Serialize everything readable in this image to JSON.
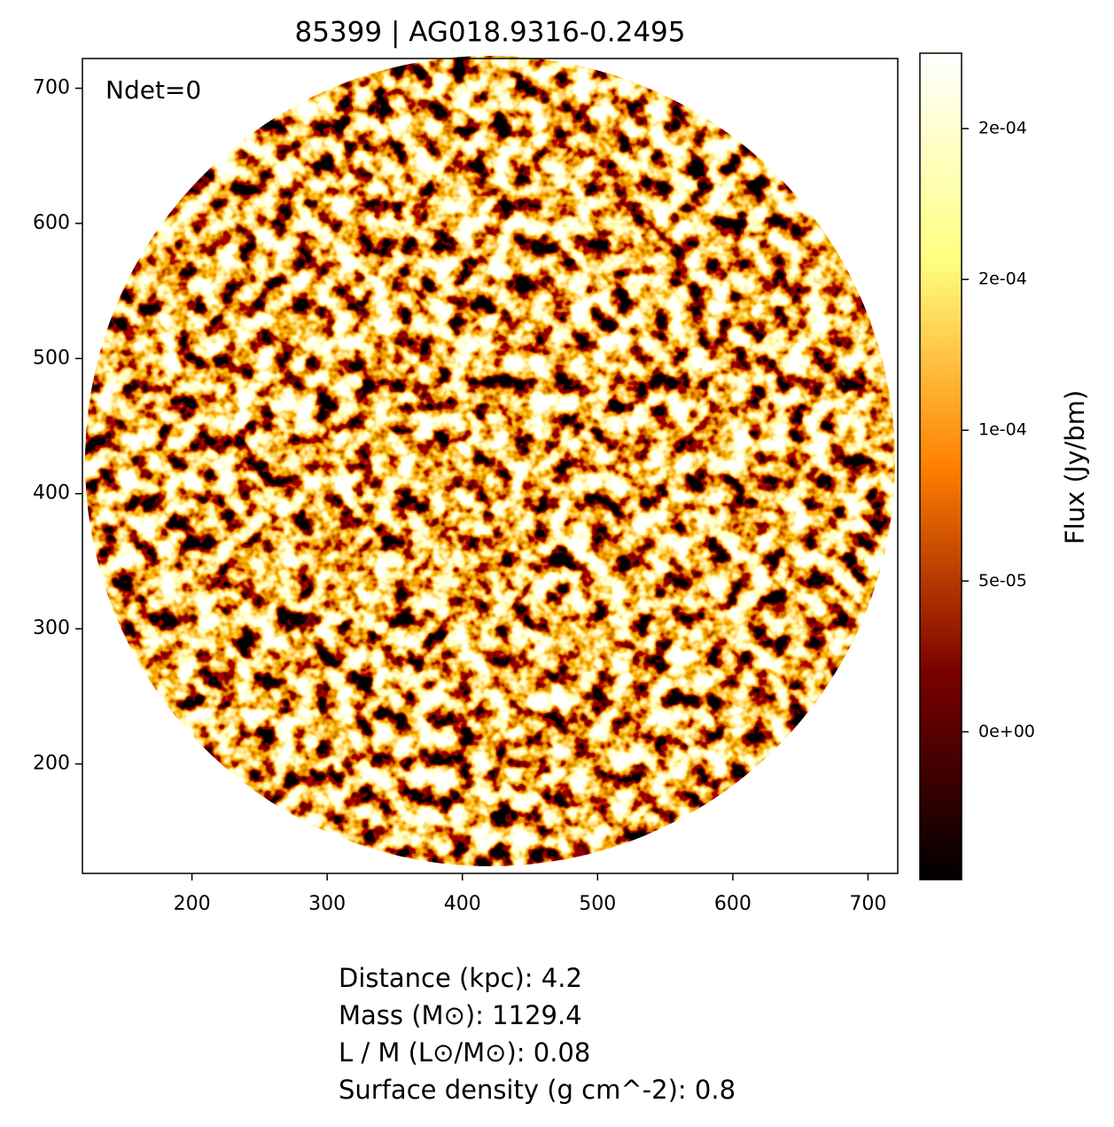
{
  "chart_data": {
    "type": "image",
    "title": "85399 | AG018.9316-0.2495",
    "annotation": "Ndet=0",
    "xlim": [
      119,
      722
    ],
    "xticks": [
      200,
      300,
      400,
      500,
      600,
      700
    ],
    "ylim": [
      119,
      722
    ],
    "yticks": [
      200,
      300,
      400,
      500,
      600,
      700
    ],
    "colorbar": {
      "label": "Flux (Jy/bm)",
      "lim": [
        -4.9e-05,
        0.000225
      ],
      "ticks": [
        {
          "value": 0,
          "label": "0e+00"
        },
        {
          "value": 5e-05,
          "label": "5e-05"
        },
        {
          "value": 0.0001,
          "label": "1e-04"
        },
        {
          "value": 0.00015,
          "label": "2e-04"
        },
        {
          "value": 0.0002,
          "label": "2e-04"
        }
      ],
      "colors": [
        "#000000",
        "#7a0000",
        "#ff8000",
        "#ffff80",
        "#ffffff"
      ]
    },
    "info": [
      "Distance (kpc): 4.2",
      "Mass (M⊙): 1129.4",
      "L / M (L⊙/M⊙): 0.08",
      "Surface density (g cm^-2): 0.8"
    ]
  }
}
